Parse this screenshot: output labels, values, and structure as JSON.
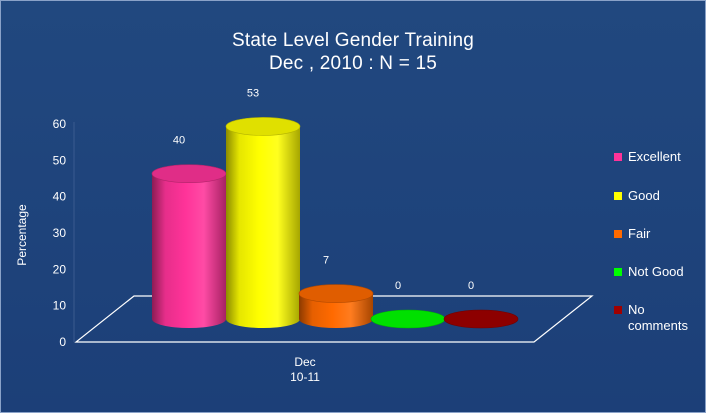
{
  "chart_data": {
    "type": "bar",
    "title": "State Level Gender Training",
    "subtitle": "Dec , 2010 : N = 15",
    "ylabel": "Percentage",
    "xlabel": "",
    "category_label_lines": [
      "Dec",
      "10-11"
    ],
    "ylim": [
      0,
      60
    ],
    "yticks": [
      0,
      10,
      20,
      30,
      40,
      50,
      60
    ],
    "legend_position": "right",
    "series": [
      {
        "name": "Excellent",
        "value": 40,
        "color": "#ff3399"
      },
      {
        "name": "Good",
        "value": 53,
        "color": "#ffff00"
      },
      {
        "name": "Fair",
        "value": 7,
        "color": "#ff6a00"
      },
      {
        "name": "Not Good",
        "value": 0,
        "color": "#00ff00"
      },
      {
        "name": "No comments",
        "value": 0,
        "color": "#a00000"
      }
    ]
  },
  "colors": {
    "background": "#1e4380",
    "text": "#ffffff",
    "floor_outline": "#ffffff"
  }
}
